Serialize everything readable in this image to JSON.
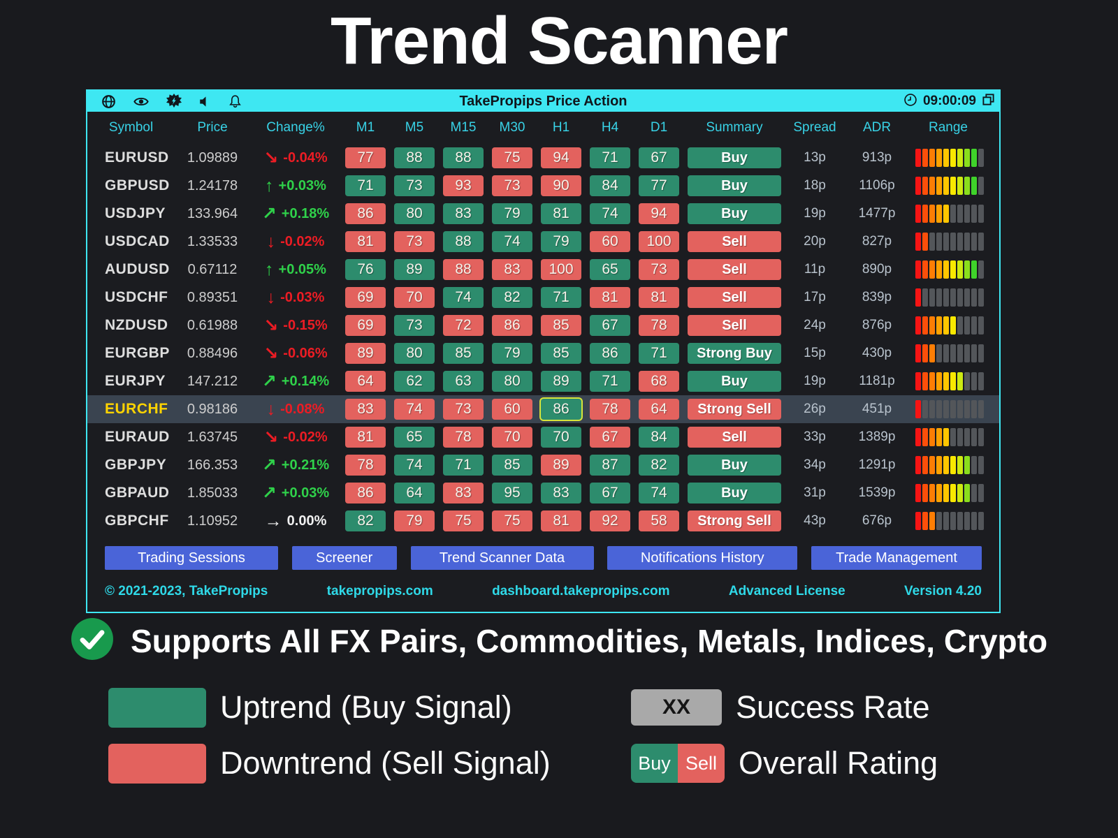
{
  "page": {
    "title": "Trend Scanner",
    "subtitle": "Supports All FX Pairs, Commodities, Metals, Indices, Crypto"
  },
  "window": {
    "title": "TakePropips Price Action",
    "time": "09:00:09",
    "toolbar_icons": [
      "globe-icon",
      "eye-icon",
      "flash-icon",
      "speaker-icon",
      "bell-icon"
    ],
    "titlebar_right_icons": [
      "clock-icon",
      "restore-window-icon"
    ],
    "columns": [
      "Symbol",
      "Price",
      "Change%",
      "M1",
      "M5",
      "M15",
      "M30",
      "H1",
      "H4",
      "D1",
      "Summary",
      "Spread",
      "ADR",
      "Range"
    ],
    "rows": [
      {
        "symbol": "EURUSD",
        "price": "1.09889",
        "dir": "se",
        "change": "-0.04%",
        "tf": [
          [
            77,
            "s"
          ],
          [
            88,
            "b"
          ],
          [
            88,
            "b"
          ],
          [
            75,
            "s"
          ],
          [
            94,
            "s"
          ],
          [
            71,
            "b"
          ],
          [
            67,
            "b"
          ]
        ],
        "summary": "Buy",
        "summary_type": "buy",
        "spread": "13p",
        "adr": "913p",
        "range_lit": 9
      },
      {
        "symbol": "GBPUSD",
        "price": "1.24178",
        "dir": "up",
        "change": "+0.03%",
        "tf": [
          [
            71,
            "b"
          ],
          [
            73,
            "b"
          ],
          [
            93,
            "s"
          ],
          [
            73,
            "s"
          ],
          [
            90,
            "s"
          ],
          [
            84,
            "b"
          ],
          [
            77,
            "b"
          ]
        ],
        "summary": "Buy",
        "summary_type": "buy",
        "spread": "18p",
        "adr": "1106p",
        "range_lit": 9
      },
      {
        "symbol": "USDJPY",
        "price": "133.964",
        "dir": "ne",
        "change": "+0.18%",
        "tf": [
          [
            86,
            "s"
          ],
          [
            80,
            "b"
          ],
          [
            83,
            "b"
          ],
          [
            79,
            "b"
          ],
          [
            81,
            "b"
          ],
          [
            74,
            "b"
          ],
          [
            94,
            "s"
          ]
        ],
        "summary": "Buy",
        "summary_type": "buy",
        "spread": "19p",
        "adr": "1477p",
        "range_lit": 5
      },
      {
        "symbol": "USDCAD",
        "price": "1.33533",
        "dir": "down",
        "change": "-0.02%",
        "tf": [
          [
            81,
            "s"
          ],
          [
            73,
            "s"
          ],
          [
            88,
            "b"
          ],
          [
            74,
            "b"
          ],
          [
            79,
            "b"
          ],
          [
            60,
            "s"
          ],
          [
            100,
            "s"
          ]
        ],
        "summary": "Sell",
        "summary_type": "sell",
        "spread": "20p",
        "adr": "827p",
        "range_lit": 2
      },
      {
        "symbol": "AUDUSD",
        "price": "0.67112",
        "dir": "up",
        "change": "+0.05%",
        "tf": [
          [
            76,
            "b"
          ],
          [
            89,
            "b"
          ],
          [
            88,
            "s"
          ],
          [
            83,
            "s"
          ],
          [
            100,
            "s"
          ],
          [
            65,
            "b"
          ],
          [
            73,
            "s"
          ]
        ],
        "summary": "Sell",
        "summary_type": "sell",
        "spread": "11p",
        "adr": "890p",
        "range_lit": 9
      },
      {
        "symbol": "USDCHF",
        "price": "0.89351",
        "dir": "down",
        "change": "-0.03%",
        "tf": [
          [
            69,
            "s"
          ],
          [
            70,
            "s"
          ],
          [
            74,
            "b"
          ],
          [
            82,
            "b"
          ],
          [
            71,
            "b"
          ],
          [
            81,
            "s"
          ],
          [
            81,
            "s"
          ]
        ],
        "summary": "Sell",
        "summary_type": "sell",
        "spread": "17p",
        "adr": "839p",
        "range_lit": 1
      },
      {
        "symbol": "NZDUSD",
        "price": "0.61988",
        "dir": "se",
        "change": "-0.15%",
        "tf": [
          [
            69,
            "s"
          ],
          [
            73,
            "b"
          ],
          [
            72,
            "s"
          ],
          [
            86,
            "s"
          ],
          [
            85,
            "s"
          ],
          [
            67,
            "b"
          ],
          [
            78,
            "s"
          ]
        ],
        "summary": "Sell",
        "summary_type": "sell",
        "spread": "24p",
        "adr": "876p",
        "range_lit": 6
      },
      {
        "symbol": "EURGBP",
        "price": "0.88496",
        "dir": "se",
        "change": "-0.06%",
        "tf": [
          [
            89,
            "s"
          ],
          [
            80,
            "b"
          ],
          [
            85,
            "b"
          ],
          [
            79,
            "b"
          ],
          [
            85,
            "b"
          ],
          [
            86,
            "b"
          ],
          [
            71,
            "b"
          ]
        ],
        "summary": "Strong Buy",
        "summary_type": "buy",
        "spread": "15p",
        "adr": "430p",
        "range_lit": 3
      },
      {
        "symbol": "EURJPY",
        "price": "147.212",
        "dir": "ne",
        "change": "+0.14%",
        "tf": [
          [
            64,
            "s"
          ],
          [
            62,
            "b"
          ],
          [
            63,
            "b"
          ],
          [
            80,
            "b"
          ],
          [
            89,
            "b"
          ],
          [
            71,
            "b"
          ],
          [
            68,
            "s"
          ]
        ],
        "summary": "Buy",
        "summary_type": "buy",
        "spread": "19p",
        "adr": "1181p",
        "range_lit": 7
      },
      {
        "symbol": "EURCHF",
        "price": "0.98186",
        "dir": "down",
        "change": "-0.08%",
        "tf": [
          [
            83,
            "s"
          ],
          [
            74,
            "s"
          ],
          [
            73,
            "s"
          ],
          [
            60,
            "s"
          ],
          [
            86,
            "b"
          ],
          [
            78,
            "s"
          ],
          [
            64,
            "s"
          ]
        ],
        "summary": "Strong Sell",
        "summary_type": "sell",
        "spread": "26p",
        "adr": "451p",
        "range_lit": 1,
        "highlight": true,
        "symbol_color": "#ffd400",
        "selected_tf": 4
      },
      {
        "symbol": "EURAUD",
        "price": "1.63745",
        "dir": "se",
        "change": "-0.02%",
        "tf": [
          [
            81,
            "s"
          ],
          [
            65,
            "b"
          ],
          [
            78,
            "s"
          ],
          [
            70,
            "s"
          ],
          [
            70,
            "b"
          ],
          [
            67,
            "s"
          ],
          [
            84,
            "b"
          ]
        ],
        "summary": "Sell",
        "summary_type": "sell",
        "spread": "33p",
        "adr": "1389p",
        "range_lit": 5
      },
      {
        "symbol": "GBPJPY",
        "price": "166.353",
        "dir": "ne",
        "change": "+0.21%",
        "tf": [
          [
            78,
            "s"
          ],
          [
            74,
            "b"
          ],
          [
            71,
            "b"
          ],
          [
            85,
            "b"
          ],
          [
            89,
            "s"
          ],
          [
            87,
            "b"
          ],
          [
            82,
            "b"
          ]
        ],
        "summary": "Buy",
        "summary_type": "buy",
        "spread": "34p",
        "adr": "1291p",
        "range_lit": 8
      },
      {
        "symbol": "GBPAUD",
        "price": "1.85033",
        "dir": "ne",
        "change": "+0.03%",
        "tf": [
          [
            86,
            "s"
          ],
          [
            64,
            "b"
          ],
          [
            83,
            "s"
          ],
          [
            95,
            "b"
          ],
          [
            83,
            "b"
          ],
          [
            67,
            "b"
          ],
          [
            74,
            "b"
          ]
        ],
        "summary": "Buy",
        "summary_type": "buy",
        "spread": "31p",
        "adr": "1539p",
        "range_lit": 8
      },
      {
        "symbol": "GBPCHF",
        "price": "1.10952",
        "dir": "flat",
        "change": "0.00%",
        "tf": [
          [
            82,
            "b"
          ],
          [
            79,
            "s"
          ],
          [
            75,
            "s"
          ],
          [
            75,
            "s"
          ],
          [
            81,
            "s"
          ],
          [
            92,
            "s"
          ],
          [
            58,
            "s"
          ]
        ],
        "summary": "Strong Sell",
        "summary_type": "sell",
        "spread": "43p",
        "adr": "676p",
        "range_lit": 3
      }
    ],
    "buttons": [
      "Trading Sessions",
      "Screener",
      "Trend Scanner Data",
      "Notifications History",
      "Trade Management"
    ],
    "footer": [
      "© 2021-2023, TakePropips",
      "takepropips.com",
      "dashboard.takepropips.com",
      "Advanced License",
      "Version 4.20"
    ]
  },
  "legend": {
    "uptrend_label": "Uptrend (Buy Signal)",
    "downtrend_label": "Downtrend (Sell Signal)",
    "success_rate_badge": "XX",
    "success_rate_label": "Success Rate",
    "overall_buy": "Buy",
    "overall_sell": "Sell",
    "overall_rating_label": "Overall Rating"
  },
  "colors": {
    "buy": "#2d8c6d",
    "sell": "#e3625e",
    "titlebar": "#3ee7f2",
    "header_text": "#38d2e6",
    "accent_blue": "#4a64d8",
    "footer_text": "#2fd9e8",
    "highlight_row": "#3a4450",
    "selected_cell_border": "#d8e53a",
    "positive": "#2fd14a",
    "negative": "#ec1c24",
    "neutral": "#f0f0f0",
    "bar_off": "#53565a",
    "check_green": "#189a4d"
  },
  "range_palette": [
    "#f71414",
    "#fc4f0a",
    "#fe7e04",
    "#ffa301",
    "#ffc600",
    "#f9e800",
    "#cdea12",
    "#8ade1c",
    "#3fd32a",
    "#21d43c"
  ]
}
